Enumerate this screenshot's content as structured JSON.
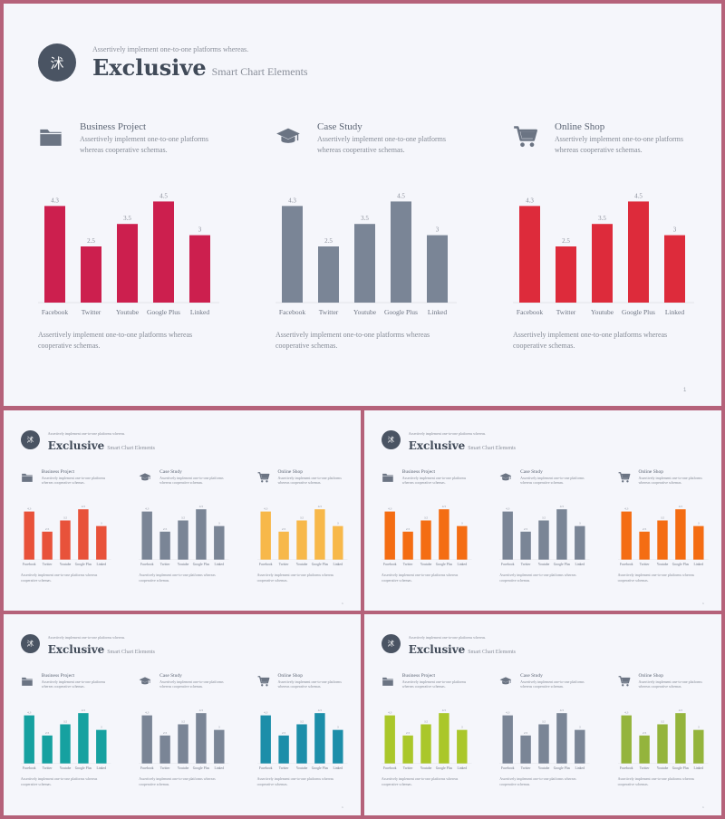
{
  "header": {
    "logo_char": "沭",
    "tagline": "Assertively implement one-to-one platforms whereas.",
    "title_main": "Exclusive",
    "title_sub": "Smart Chart Elements"
  },
  "page_number": "1",
  "panels": [
    {
      "icon": "folder-icon",
      "title": "Business Project",
      "desc": "Assertively implement one-to-one platforms whereas cooperative schemas.",
      "footer": "Assertively implement one-to-one platforms whereas cooperative schemas."
    },
    {
      "icon": "graduation-cap-icon",
      "title": "Case Study",
      "desc": "Assertively implement one-to-one platforms whereas cooperative schemas.",
      "footer": "Assertively implement one-to-one platforms whereas cooperative schemas."
    },
    {
      "icon": "shopping-cart-icon",
      "title": "Online Shop",
      "desc": "Assertively implement one-to-one platforms whereas cooperative schemas.",
      "footer": "Assertively implement one-to-one platforms whereas cooperative schemas."
    }
  ],
  "chart_data": {
    "type": "bar",
    "categories": [
      "Facebook",
      "Twitter",
      "Youtube",
      "Google Plus",
      "Linked"
    ],
    "values": [
      4.3,
      2.5,
      3.5,
      4.5,
      3
    ],
    "value_labels": [
      "4.3",
      "2.5",
      "3.5",
      "4.5",
      "3"
    ],
    "ylim": [
      0,
      5
    ]
  },
  "slides": [
    {
      "id": "crimson",
      "colors": [
        "#cc1f4e",
        "#7a8596",
        "#dd2b3b"
      ]
    },
    {
      "id": "orange-red",
      "colors": [
        "#e8523a",
        "#7a8596",
        "#f7b84a"
      ]
    },
    {
      "id": "orange",
      "colors": [
        "#f46d13",
        "#7a8596",
        "#f46d13"
      ]
    },
    {
      "id": "teal",
      "colors": [
        "#16a1a0",
        "#7a8596",
        "#1c8ea9"
      ]
    },
    {
      "id": "lime",
      "colors": [
        "#aac72a",
        "#7a8596",
        "#94b43c"
      ]
    }
  ]
}
